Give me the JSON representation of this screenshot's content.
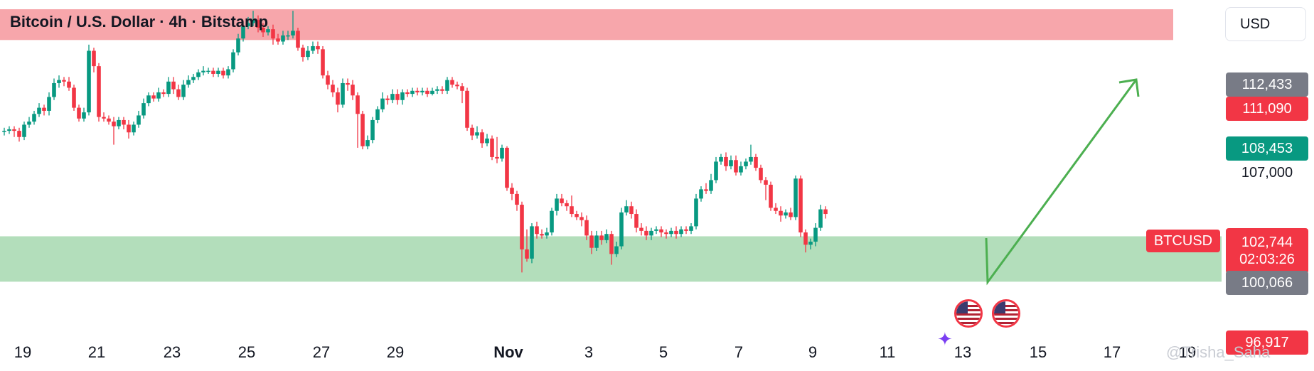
{
  "header": {
    "title": "Bitcoin / U.S. Dollar · 4h · Bitstamp",
    "currency": "USD"
  },
  "price_tags": {
    "t1": "112,433",
    "t2": "111,090",
    "t3": "108,453",
    "t4": "107,000",
    "symbol": "BTCUSD",
    "current_price": "102,744",
    "countdown": "02:03:26",
    "t5": "100,066",
    "t6": "96,917"
  },
  "colors": {
    "up": "#089981",
    "down": "#f23645",
    "resistance_zone": "#f7a6ab",
    "support_zone": "#b3debb",
    "arrow": "#4caf50"
  },
  "x_axis": {
    "ticks": [
      "19",
      "21",
      "23",
      "25",
      "27",
      "29",
      "Nov",
      "3",
      "5",
      "7",
      "9",
      "11",
      "13",
      "15",
      "17",
      "19"
    ]
  },
  "watermark": "@Trisha_Saha",
  "chart_data": {
    "type": "candlestick",
    "title": "Bitcoin / U.S. Dollar · 4h · Bitstamp",
    "currency": "USD",
    "x_ticks": [
      "19",
      "21",
      "23",
      "25",
      "27",
      "29",
      "Nov",
      "3",
      "5",
      "7",
      "9",
      "11",
      "13",
      "15",
      "17",
      "19"
    ],
    "ylim": [
      96000,
      116500
    ],
    "zones": [
      {
        "name": "resistance",
        "from": 113900,
        "to": 115900,
        "color": "#f7a6ab"
      },
      {
        "name": "support",
        "from": 98200,
        "to": 101150,
        "color": "#b3debb"
      }
    ],
    "price_levels": [
      112433,
      111090,
      108453,
      107000,
      102744,
      100066,
      96917
    ],
    "current_price": 102744,
    "candles": [
      [
        108000,
        108000,
        108200,
        107700
      ],
      [
        108000,
        108100,
        108300,
        107800
      ],
      [
        108100,
        108000,
        108300,
        107600
      ],
      [
        108000,
        107600,
        108200,
        107300
      ],
      [
        107600,
        108400,
        108600,
        107400
      ],
      [
        108400,
        108600,
        108900,
        108200
      ],
      [
        108600,
        109100,
        109300,
        108400
      ],
      [
        109100,
        109500,
        109800,
        108900
      ],
      [
        109500,
        109300,
        109700,
        109000
      ],
      [
        109300,
        110200,
        110500,
        109000
      ],
      [
        110200,
        111100,
        111400,
        110000
      ],
      [
        111100,
        111300,
        111600,
        110800
      ],
      [
        111300,
        111200,
        111500,
        110900
      ],
      [
        111200,
        110800,
        111500,
        110600
      ],
      [
        110800,
        109500,
        111000,
        109300
      ],
      [
        109500,
        108800,
        109700,
        108600
      ],
      [
        108800,
        109200,
        109500,
        108600
      ],
      [
        109200,
        113200,
        113600,
        109000
      ],
      [
        113200,
        112200,
        113400,
        111800
      ],
      [
        112200,
        108900,
        112400,
        108600
      ],
      [
        108900,
        108800,
        109200,
        108600
      ],
      [
        108800,
        108600,
        109000,
        108400
      ],
      [
        108600,
        108300,
        108900,
        107100
      ],
      [
        108300,
        108700,
        108900,
        108100
      ],
      [
        108700,
        108400,
        108900,
        108100
      ],
      [
        108400,
        107900,
        108700,
        107500
      ],
      [
        107900,
        108400,
        108600,
        107700
      ],
      [
        108400,
        109000,
        109300,
        108200
      ],
      [
        109000,
        109800,
        110100,
        108800
      ],
      [
        109800,
        110300,
        110500,
        109600
      ],
      [
        110300,
        110100,
        110500,
        109900
      ],
      [
        110100,
        110500,
        110800,
        109900
      ],
      [
        110500,
        110400,
        110700,
        110200
      ],
      [
        110400,
        111200,
        111500,
        110200
      ],
      [
        111200,
        110700,
        111500,
        110400
      ],
      [
        110700,
        110200,
        111000,
        110000
      ],
      [
        110200,
        111000,
        111300,
        110000
      ],
      [
        111000,
        111300,
        111600,
        110800
      ],
      [
        111300,
        111500,
        111700,
        111100
      ],
      [
        111500,
        111800,
        112000,
        111300
      ],
      [
        111800,
        111900,
        112200,
        111600
      ],
      [
        111900,
        111900,
        112100,
        111700
      ],
      [
        111900,
        111700,
        112100,
        111500
      ],
      [
        111700,
        111900,
        112100,
        111500
      ],
      [
        111900,
        111600,
        112100,
        111400
      ],
      [
        111600,
        112000,
        112200,
        111400
      ],
      [
        112000,
        113100,
        113300,
        111800
      ],
      [
        113100,
        114000,
        114300,
        112900
      ],
      [
        114000,
        114800,
        115100,
        113800
      ],
      [
        114800,
        115000,
        115400,
        114600
      ],
      [
        115000,
        115200,
        115800,
        114800
      ],
      [
        115200,
        114700,
        115500,
        114400
      ],
      [
        114700,
        114400,
        115000,
        114100
      ],
      [
        114400,
        114600,
        114800,
        114200
      ],
      [
        114600,
        114000,
        114900,
        113600
      ],
      [
        114000,
        113800,
        114300,
        113600
      ],
      [
        113800,
        114200,
        114500,
        113600
      ],
      [
        114200,
        114200,
        114500,
        113900
      ],
      [
        114200,
        114500,
        115800,
        114000
      ],
      [
        114500,
        113400,
        114700,
        113200
      ],
      [
        113400,
        112800,
        113600,
        112500
      ],
      [
        112800,
        113200,
        113500,
        112600
      ],
      [
        113200,
        113500,
        113800,
        113000
      ],
      [
        113500,
        113300,
        113800,
        113000
      ],
      [
        113300,
        111600,
        113500,
        111400
      ],
      [
        111600,
        111000,
        111900,
        110700
      ],
      [
        111000,
        110500,
        111300,
        110200
      ],
      [
        110500,
        109700,
        110800,
        109200
      ],
      [
        109700,
        111100,
        111400,
        109500
      ],
      [
        111100,
        111000,
        111400,
        110600
      ],
      [
        111000,
        110300,
        111300,
        110000
      ],
      [
        110300,
        109100,
        110500,
        106900
      ],
      [
        109100,
        107000,
        109300,
        106800
      ],
      [
        107000,
        107400,
        107700,
        106800
      ],
      [
        107400,
        108700,
        108900,
        107200
      ],
      [
        108700,
        109400,
        109600,
        108500
      ],
      [
        109400,
        110100,
        110500,
        109200
      ],
      [
        110100,
        110000,
        110300,
        109700
      ],
      [
        110000,
        110400,
        110700,
        109800
      ],
      [
        110400,
        110000,
        110700,
        109700
      ],
      [
        110000,
        110500,
        110700,
        109700
      ],
      [
        110500,
        110400,
        110700,
        110200
      ],
      [
        110400,
        110600,
        110800,
        110200
      ],
      [
        110600,
        110500,
        110800,
        110300
      ],
      [
        110500,
        110600,
        110800,
        110300
      ],
      [
        110600,
        110400,
        110800,
        110200
      ],
      [
        110400,
        110600,
        110800,
        110300
      ],
      [
        110600,
        110700,
        110900,
        110400
      ],
      [
        110700,
        110600,
        110900,
        110400
      ],
      [
        110600,
        111300,
        111500,
        110400
      ],
      [
        111300,
        111000,
        111500,
        110800
      ],
      [
        111000,
        110900,
        111200,
        110700
      ],
      [
        110900,
        110600,
        111100,
        109800
      ],
      [
        110600,
        108200,
        110800,
        108000
      ],
      [
        108200,
        107700,
        108400,
        107400
      ],
      [
        107700,
        107900,
        108300,
        107500
      ],
      [
        107900,
        107200,
        108100,
        106900
      ],
      [
        107200,
        107500,
        107800,
        107000
      ],
      [
        107500,
        106300,
        107700,
        106100
      ],
      [
        106300,
        106200,
        107600,
        105900
      ],
      [
        106200,
        106900,
        107100,
        106000
      ],
      [
        106900,
        104300,
        107000,
        104100
      ],
      [
        104300,
        103900,
        104600,
        103500
      ],
      [
        103900,
        103200,
        104100,
        102800
      ],
      [
        103200,
        100300,
        103400,
        98800
      ],
      [
        100300,
        99700,
        101600,
        99500
      ],
      [
        99700,
        101800,
        102000,
        99400
      ],
      [
        101800,
        101300,
        102100,
        101000
      ],
      [
        101300,
        101200,
        101600,
        101000
      ],
      [
        101200,
        101400,
        101700,
        101000
      ],
      [
        101400,
        102800,
        103000,
        101200
      ],
      [
        102800,
        103600,
        103900,
        102500
      ],
      [
        103600,
        103300,
        103900,
        103100
      ],
      [
        103300,
        103100,
        103500,
        102800
      ],
      [
        103100,
        102600,
        103800,
        102400
      ],
      [
        102600,
        102400,
        102800,
        102200
      ],
      [
        102400,
        102200,
        102700,
        101800
      ],
      [
        102200,
        101200,
        102500,
        100900
      ],
      [
        101200,
        100400,
        101500,
        100000
      ],
      [
        100400,
        101200,
        101500,
        100200
      ],
      [
        101200,
        100900,
        101500,
        100600
      ],
      [
        100900,
        101300,
        101600,
        100700
      ],
      [
        101300,
        100000,
        101500,
        99300
      ],
      [
        100000,
        100500,
        100800,
        99800
      ],
      [
        100500,
        102700,
        103000,
        100300
      ],
      [
        102700,
        103100,
        103500,
        102500
      ],
      [
        103100,
        102600,
        103400,
        102300
      ],
      [
        102600,
        101700,
        102900,
        101400
      ],
      [
        101700,
        101500,
        102000,
        101200
      ],
      [
        101500,
        101200,
        101800,
        100900
      ],
      [
        101200,
        101500,
        101700,
        100900
      ],
      [
        101500,
        101600,
        101800,
        101300
      ],
      [
        101600,
        101400,
        101800,
        101100
      ],
      [
        101400,
        101300,
        101600,
        101000
      ],
      [
        101300,
        101500,
        101700,
        101100
      ],
      [
        101500,
        101300,
        101800,
        101000
      ],
      [
        101300,
        101600,
        101800,
        101100
      ],
      [
        101600,
        101500,
        101800,
        101300
      ],
      [
        101500,
        101800,
        102000,
        101300
      ],
      [
        101800,
        103600,
        103900,
        101600
      ],
      [
        103600,
        104200,
        104400,
        103400
      ],
      [
        104200,
        104100,
        104600,
        103900
      ],
      [
        104100,
        104800,
        105200,
        103900
      ],
      [
        104800,
        106000,
        106300,
        104600
      ],
      [
        106000,
        106300,
        106500,
        105800
      ],
      [
        106300,
        105700,
        106600,
        105400
      ],
      [
        105700,
        106100,
        106400,
        105500
      ],
      [
        106100,
        105300,
        106400,
        105100
      ],
      [
        105300,
        105700,
        106000,
        105100
      ],
      [
        105700,
        106000,
        106200,
        105500
      ],
      [
        106000,
        106300,
        107100,
        105800
      ],
      [
        106300,
        105600,
        106500,
        105400
      ],
      [
        105600,
        104800,
        105800,
        104600
      ],
      [
        104800,
        104500,
        105000,
        103500
      ],
      [
        104500,
        103000,
        104700,
        102800
      ],
      [
        103000,
        102800,
        103300,
        102600
      ],
      [
        102800,
        102500,
        103100,
        102100
      ],
      [
        102500,
        102700,
        102900,
        102300
      ],
      [
        102700,
        102400,
        103000,
        102200
      ],
      [
        102400,
        104900,
        105100,
        102200
      ],
      [
        104900,
        101400,
        105100,
        101100
      ],
      [
        101400,
        100600,
        101600,
        100100
      ],
      [
        100600,
        100800,
        101000,
        100300
      ],
      [
        100800,
        101700,
        102000,
        100500
      ],
      [
        101700,
        102900,
        103200,
        101500
      ],
      [
        102900,
        102600,
        103100,
        102300
      ]
    ]
  }
}
